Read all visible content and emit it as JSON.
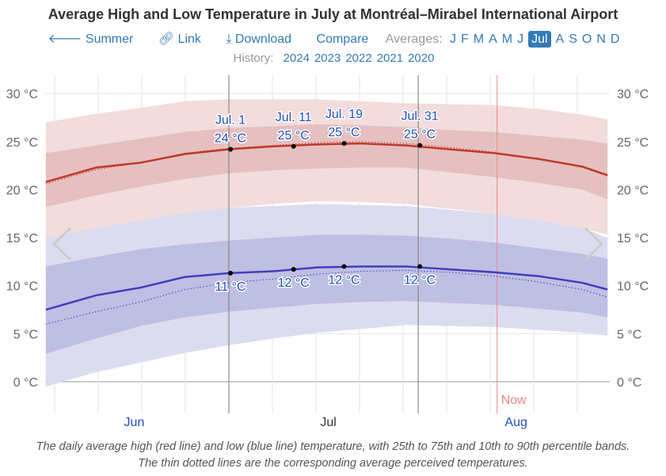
{
  "title": "Average High and Low Temperature in July at Montréal–Mirabel International Airport",
  "nav": {
    "summer": "Summer",
    "link": "Link",
    "download": "Download",
    "compare": "Compare",
    "averages_label": "Averages:",
    "months": [
      "J",
      "F",
      "M",
      "A",
      "M",
      "J",
      "Jul",
      "A",
      "S",
      "O",
      "N",
      "D"
    ],
    "selected_month": "Jul"
  },
  "history": {
    "label": "History:",
    "years": [
      "2024",
      "2023",
      "2022",
      "2021",
      "2020"
    ]
  },
  "colors": {
    "high": "#c0392b",
    "low": "#3f3fbf",
    "high_band_inner": "#e6c0c0",
    "high_band_outer": "#f2dcdc",
    "low_band_inner": "#bfbfe3",
    "low_band_outer": "#dcdcf0",
    "now": "#e88"
  },
  "chart_data": {
    "type": "area",
    "title": "Average High and Low Temperature in July at Montréal–Mirabel International Airport",
    "x_unit": "days relative to Jul 1",
    "xlim": [
      -29,
      60
    ],
    "ylim": [
      -3,
      32
    ],
    "y_ticks": [
      0,
      5,
      10,
      15,
      20,
      25,
      30
    ],
    "y_tick_labels": [
      "0 °C",
      "5 °C",
      "10 °C",
      "15 °C",
      "20 °C",
      "25 °C",
      "30 °C"
    ],
    "month_labels": [
      {
        "label": "Jun",
        "day": -15
      },
      {
        "label": "Jul",
        "day": 15
      },
      {
        "label": "Aug",
        "day": 45.5
      }
    ],
    "now_label": "Now",
    "now_day": 42.5,
    "x": [
      -29,
      -21,
      -14,
      -7,
      0,
      7,
      14,
      21,
      28,
      35,
      42,
      49,
      56,
      60
    ],
    "series": [
      {
        "name": "Average high",
        "values": [
          20.8,
          22.3,
          22.8,
          23.7,
          24.2,
          24.5,
          24.7,
          24.8,
          24.6,
          24.2,
          23.8,
          23.2,
          22.4,
          21.5
        ]
      },
      {
        "name": "Average low",
        "values": [
          7.5,
          9.0,
          9.8,
          10.9,
          11.3,
          11.5,
          11.9,
          12.0,
          12.0,
          11.7,
          11.4,
          11.0,
          10.3,
          9.6
        ]
      },
      {
        "name": "High perceived",
        "values": [
          20.6,
          22.1,
          22.8,
          23.8,
          24.3,
          24.6,
          24.9,
          25.0,
          24.8,
          24.4,
          23.9,
          23.2,
          22.3,
          21.4
        ]
      },
      {
        "name": "Low perceived",
        "values": [
          6.0,
          7.3,
          8.3,
          9.6,
          10.3,
          10.7,
          11.2,
          11.5,
          11.6,
          11.4,
          11.0,
          10.4,
          9.6,
          8.8
        ]
      },
      {
        "name": "High p90",
        "values": [
          27.0,
          27.9,
          28.5,
          29.2,
          29.4,
          29.4,
          29.4,
          29.2,
          29.0,
          28.9,
          28.8,
          28.4,
          27.8,
          27.3
        ]
      },
      {
        "name": "High p75",
        "values": [
          23.8,
          24.6,
          25.3,
          26.0,
          26.4,
          26.6,
          26.8,
          26.7,
          26.5,
          26.2,
          26.0,
          25.6,
          25.2,
          24.8
        ]
      },
      {
        "name": "High p25",
        "values": [
          18.2,
          19.4,
          20.3,
          21.1,
          21.7,
          22.0,
          22.2,
          22.3,
          22.3,
          21.8,
          21.3,
          20.7,
          20.0,
          19.0
        ]
      },
      {
        "name": "High p10",
        "values": [
          15.0,
          15.9,
          16.6,
          17.5,
          18.1,
          18.5,
          18.8,
          18.7,
          18.5,
          18.0,
          17.5,
          16.8,
          16.0,
          15.3
        ]
      },
      {
        "name": "Low p90",
        "values": [
          15.0,
          16.0,
          16.8,
          17.6,
          18.1,
          18.3,
          18.5,
          18.4,
          18.3,
          17.9,
          17.5,
          16.8,
          16.0,
          15.0
        ]
      },
      {
        "name": "Low p75",
        "values": [
          12.0,
          13.0,
          13.8,
          14.3,
          14.7,
          15.0,
          15.3,
          15.3,
          15.2,
          14.9,
          14.5,
          13.9,
          13.3,
          12.8
        ]
      },
      {
        "name": "Low p25",
        "values": [
          2.9,
          4.5,
          5.8,
          6.7,
          7.3,
          7.7,
          8.1,
          8.3,
          8.4,
          8.2,
          8.0,
          7.6,
          7.2,
          6.7
        ]
      },
      {
        "name": "Low p10",
        "values": [
          -0.5,
          1.0,
          2.0,
          3.0,
          3.8,
          4.5,
          5.1,
          5.5,
          5.9,
          5.8,
          5.7,
          5.4,
          5.1,
          4.8
        ]
      }
    ],
    "annotations": [
      {
        "day": 0,
        "label": "Jul. 1",
        "high": "24 °C",
        "low": "11 °C",
        "high_value": 24.2,
        "low_value": 11.3
      },
      {
        "day": 10,
        "label": "Jul. 11",
        "high": "25 °C",
        "low": "12 °C",
        "high_value": 24.5,
        "low_value": 11.7
      },
      {
        "day": 18,
        "label": "Jul. 19",
        "high": "25 °C",
        "low": "12 °C",
        "high_value": 24.8,
        "low_value": 12.0
      },
      {
        "day": 30,
        "label": "Jul. 31",
        "high": "25 °C",
        "low": "12 °C",
        "high_value": 24.6,
        "low_value": 12.0
      }
    ]
  },
  "caption": "The daily average high (red line) and low (blue line) temperature, with 25th to 75th and 10th to 90th percentile bands. The thin dotted lines are the corresponding average perceived temperatures."
}
